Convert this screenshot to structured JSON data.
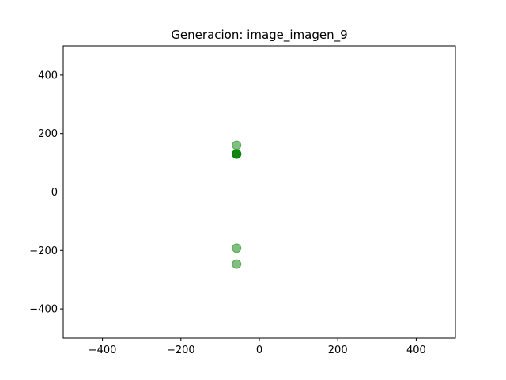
{
  "chart_data": {
    "type": "scatter",
    "title": "Generacion: image_imagen_9",
    "xlabel": "",
    "ylabel": "",
    "xlim": [
      -500,
      500
    ],
    "ylim": [
      -500,
      500
    ],
    "xticks": [
      -400,
      -200,
      0,
      200,
      400
    ],
    "yticks": [
      -400,
      -200,
      0,
      200,
      400
    ],
    "xtick_labels": [
      "−400",
      "−200",
      "0",
      "200",
      "400"
    ],
    "ytick_labels": [
      "−400",
      "−200",
      "0",
      "200",
      "400"
    ],
    "grid": false,
    "marker_color": "#008000",
    "marker_alpha": 0.5,
    "series": [
      {
        "points": [
          {
            "x": -58,
            "y": 160
          },
          {
            "x": -58,
            "y": 130
          },
          {
            "x": -58,
            "y": 130
          },
          {
            "x": -58,
            "y": 130
          },
          {
            "x": -58,
            "y": 130
          },
          {
            "x": -58,
            "y": -192
          },
          {
            "x": -58,
            "y": -247
          }
        ]
      }
    ]
  }
}
